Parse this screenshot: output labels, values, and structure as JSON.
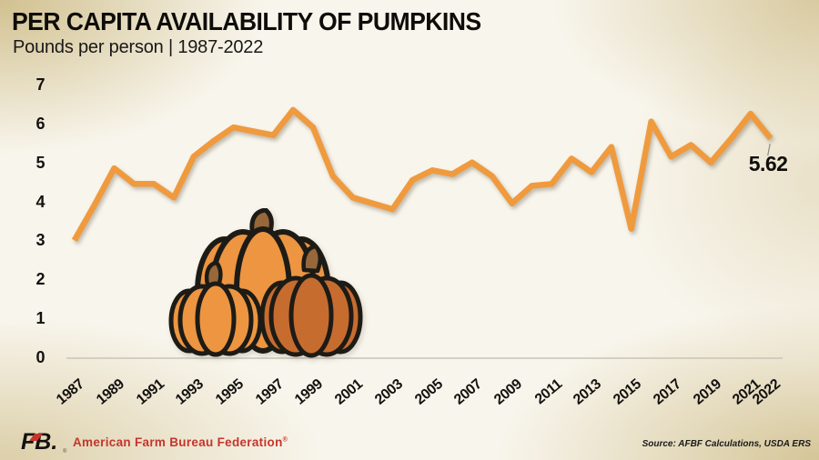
{
  "page": {
    "title": "PER CAPITA AVAILABILITY OF PUMPKINS",
    "subtitle": "Pounds per person | 1987-2022"
  },
  "chart_data": {
    "type": "line",
    "title": "PER CAPITA AVAILABILITY OF PUMPKINS",
    "subtitle": "Pounds per person | 1987-2022",
    "ylabel": "Pounds per person",
    "ylim": [
      0,
      7
    ],
    "grid": false,
    "legend": "none",
    "line_color": "#F09A3E",
    "x": [
      1987,
      1988,
      1989,
      1990,
      1991,
      1992,
      1993,
      1994,
      1995,
      1996,
      1997,
      1998,
      1999,
      2000,
      2001,
      2002,
      2003,
      2004,
      2005,
      2006,
      2007,
      2008,
      2009,
      2010,
      2011,
      2012,
      2013,
      2014,
      2015,
      2016,
      2017,
      2018,
      2019,
      2020,
      2021,
      2022
    ],
    "values": [
      3.0,
      3.9,
      4.85,
      4.45,
      4.45,
      4.1,
      5.15,
      5.55,
      5.9,
      5.8,
      5.7,
      6.35,
      5.9,
      4.65,
      4.1,
      3.95,
      3.8,
      4.55,
      4.8,
      4.7,
      5.0,
      4.65,
      3.95,
      4.4,
      4.45,
      5.1,
      4.75,
      5.4,
      3.3,
      6.05,
      5.15,
      5.45,
      5.0,
      5.6,
      6.25,
      5.62
    ],
    "yticks": [
      7,
      6,
      5,
      4,
      3,
      2,
      1,
      0
    ],
    "xtick_labels": [
      "1987",
      "1989",
      "1991",
      "1993",
      "1995",
      "1997",
      "1999",
      "2001",
      "2003",
      "2005",
      "2007",
      "2009",
      "2011",
      "2013",
      "2015",
      "2017",
      "2019",
      "2021",
      "2022"
    ],
    "annotation": {
      "year": 2022,
      "label": "5.62"
    }
  },
  "footer": {
    "logo_text": "FB.",
    "org_name": "American Farm Bureau Federation",
    "org_reg_mark": "®",
    "source": "Source: AFBF Calculations, USDA ERS"
  }
}
